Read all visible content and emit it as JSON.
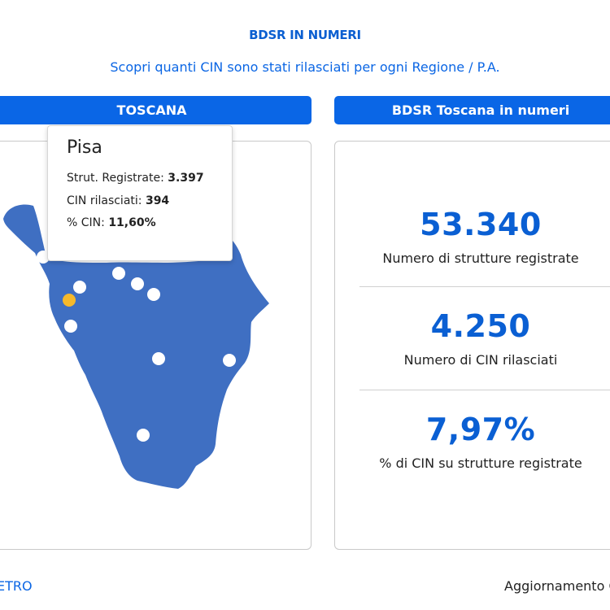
{
  "header": {
    "title": "BDSR IN NUMERI",
    "subtitle": "Scopri quanti CIN sono stati rilasciati per ogni Regione / P.A."
  },
  "map_panel": {
    "region_label": "TOSCANA",
    "map_color": "#3f6fc2",
    "tooltip": {
      "title": "Pisa",
      "rows": [
        {
          "label": "Strut. Registrate:",
          "value": "3.397"
        },
        {
          "label": "CIN rilasciati:",
          "value": "394"
        },
        {
          "label": "% CIN:",
          "value": "11,60%"
        }
      ]
    },
    "city_markers": [
      {
        "name": "city-marker",
        "selected": false
      },
      {
        "name": "city-marker",
        "selected": false
      },
      {
        "name": "city-marker",
        "selected": false
      },
      {
        "name": "city-marker",
        "selected": false
      },
      {
        "name": "city-marker",
        "selected": false
      },
      {
        "name": "city-marker-pisa",
        "selected": true
      },
      {
        "name": "city-marker",
        "selected": false
      },
      {
        "name": "city-marker",
        "selected": false
      },
      {
        "name": "city-marker",
        "selected": false
      },
      {
        "name": "city-marker",
        "selected": false
      }
    ],
    "selected_color": "#f6b92b"
  },
  "stats_panel": {
    "title": "BDSR Toscana in numeri",
    "stats": [
      {
        "value": "53.340",
        "label": "Numero di strutture registrate"
      },
      {
        "value": "4.250",
        "label": "Numero di CIN rilasciati"
      },
      {
        "value": "7,97%",
        "label": "% di CIN su strutture registrate"
      }
    ]
  },
  "footer": {
    "left_text": "ETRO",
    "right_text": "Aggiornamento C"
  }
}
